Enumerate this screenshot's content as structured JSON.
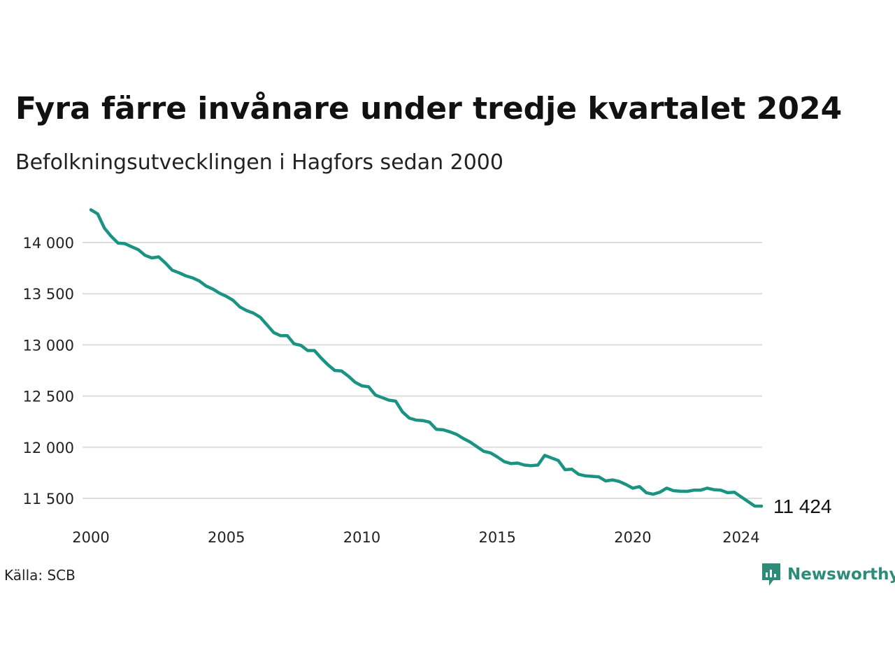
{
  "header": {
    "title": "Fyra färre invånare under tredje kvartalet 2024",
    "subtitle": "Befolkningsutvecklingen i Hagfors sedan 2000"
  },
  "footer": {
    "source": "Källa: SCB",
    "brand": "Newsworthy"
  },
  "colors": {
    "line": "#1a9383",
    "grid": "#dddddd",
    "brand": "#2e8b7a"
  },
  "chart_data": {
    "type": "line",
    "title": "Fyra färre invånare under tredje kvartalet 2024",
    "subtitle": "Befolkningsutvecklingen i Hagfors sedan 2000",
    "xlabel": "",
    "ylabel": "",
    "xlim": [
      2000,
      2024.75
    ],
    "ylim": [
      11380,
      14330
    ],
    "grid": true,
    "x_ticks": [
      2000,
      2005,
      2010,
      2015,
      2020,
      2024
    ],
    "x_tick_labels": [
      "2000",
      "2005",
      "2010",
      "2015",
      "2020",
      "2024"
    ],
    "y_ticks": [
      11500,
      12000,
      12500,
      13000,
      13500,
      14000
    ],
    "y_tick_labels": [
      "11 500",
      "12 000",
      "12 500",
      "13 000",
      "13 500",
      "14 000"
    ],
    "end_label": "11 424",
    "series": [
      {
        "x": [
          2000.0,
          2000.25,
          2000.5,
          2000.75,
          2001.0,
          2001.25,
          2001.5,
          2001.75,
          2002.0,
          2002.25,
          2002.5,
          2002.75,
          2003.0,
          2003.25,
          2003.5,
          2003.75,
          2004.0,
          2004.25,
          2004.5,
          2004.75,
          2005.0,
          2005.25,
          2005.5,
          2005.75,
          2006.0,
          2006.25,
          2006.5,
          2006.75,
          2007.0,
          2007.25,
          2007.5,
          2007.75,
          2008.0,
          2008.25,
          2008.5,
          2008.75,
          2009.0,
          2009.25,
          2009.5,
          2009.75,
          2010.0,
          2010.25,
          2010.5,
          2010.75,
          2011.0,
          2011.25,
          2011.5,
          2011.75,
          2012.0,
          2012.25,
          2012.5,
          2012.75,
          2013.0,
          2013.25,
          2013.5,
          2013.75,
          2014.0,
          2014.25,
          2014.5,
          2014.75,
          2015.0,
          2015.25,
          2015.5,
          2015.75,
          2016.0,
          2016.25,
          2016.5,
          2016.75,
          2017.0,
          2017.25,
          2017.5,
          2017.75,
          2018.0,
          2018.25,
          2018.5,
          2018.75,
          2019.0,
          2019.25,
          2019.5,
          2019.75,
          2020.0,
          2020.25,
          2020.5,
          2020.75,
          2021.0,
          2021.25,
          2021.5,
          2021.75,
          2022.0,
          2022.25,
          2022.5,
          2022.75,
          2023.0,
          2023.25,
          2023.5,
          2023.75,
          2024.0,
          2024.25,
          2024.5,
          2024.75
        ],
        "y": [
          14320,
          14280,
          14140,
          14060,
          13995,
          13990,
          13960,
          13930,
          13875,
          13850,
          13860,
          13800,
          13730,
          13705,
          13675,
          13655,
          13625,
          13575,
          13545,
          13505,
          13475,
          13435,
          13370,
          13335,
          13310,
          13270,
          13195,
          13120,
          13090,
          13090,
          13010,
          12995,
          12945,
          12945,
          12870,
          12805,
          12750,
          12745,
          12695,
          12635,
          12600,
          12590,
          12510,
          12485,
          12460,
          12450,
          12345,
          12285,
          12265,
          12260,
          12245,
          12175,
          12170,
          12150,
          12125,
          12085,
          12050,
          12005,
          11960,
          11945,
          11905,
          11860,
          11840,
          11845,
          11825,
          11820,
          11825,
          11920,
          11895,
          11870,
          11780,
          11785,
          11735,
          11720,
          11715,
          11710,
          11670,
          11680,
          11665,
          11635,
          11600,
          11615,
          11555,
          11540,
          11560,
          11600,
          11575,
          11570,
          11568,
          11580,
          11580,
          11600,
          11585,
          11580,
          11555,
          11560,
          11515,
          11470,
          11425,
          11424
        ]
      }
    ]
  }
}
